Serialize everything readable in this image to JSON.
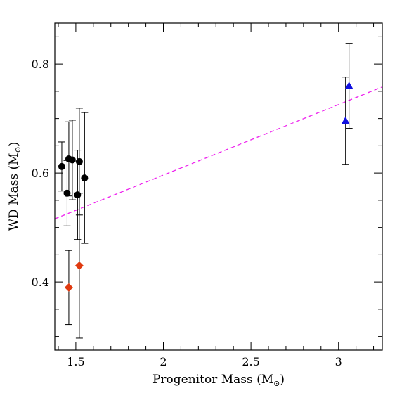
{
  "chart_data": {
    "type": "scatter",
    "xlabel": "Progenitor Mass (M",
    "xlabel_unit_sub": "⊙",
    "xlabel_close": ")",
    "ylabel": "WD Mass (M",
    "ylabel_unit_sub": "⊙",
    "ylabel_close": ")",
    "xlim": [
      1.38,
      3.25
    ],
    "ylim": [
      0.275,
      0.875
    ],
    "x_ticks": [
      1.5,
      2,
      2.5,
      3
    ],
    "x_tick_labels": [
      "1.5",
      "2",
      "2.5",
      "3"
    ],
    "y_ticks": [
      0.4,
      0.6,
      0.8
    ],
    "y_tick_labels": [
      "0.4",
      "0.6",
      "0.8"
    ],
    "grid": false,
    "series": [
      {
        "marker": "circle",
        "color": "#000000",
        "points": [
          {
            "x": 1.42,
            "y": 0.612,
            "err": 0.045
          },
          {
            "x": 1.45,
            "y": 0.563,
            "err": 0.06
          },
          {
            "x": 1.46,
            "y": 0.626,
            "err": 0.068
          },
          {
            "x": 1.48,
            "y": 0.624,
            "err": 0.073
          },
          {
            "x": 1.51,
            "y": 0.56,
            "err": 0.082
          },
          {
            "x": 1.52,
            "y": 0.621,
            "err": 0.098
          },
          {
            "x": 1.55,
            "y": 0.591,
            "err": 0.12
          }
        ]
      },
      {
        "marker": "diamond",
        "color": "#e03a10",
        "points": [
          {
            "x": 1.46,
            "y": 0.39,
            "err": 0.068
          },
          {
            "x": 1.52,
            "y": 0.43,
            "err": 0.133
          }
        ]
      },
      {
        "marker": "triangle",
        "color": "#1010e0",
        "points": [
          {
            "x": 3.04,
            "y": 0.696,
            "err": 0.08
          },
          {
            "x": 3.06,
            "y": 0.76,
            "err": 0.078
          }
        ]
      }
    ],
    "fit_line": {
      "style": "dashed",
      "color": "#ee22ee",
      "x": [
        1.38,
        3.25
      ],
      "y": [
        0.516,
        0.758
      ]
    }
  }
}
